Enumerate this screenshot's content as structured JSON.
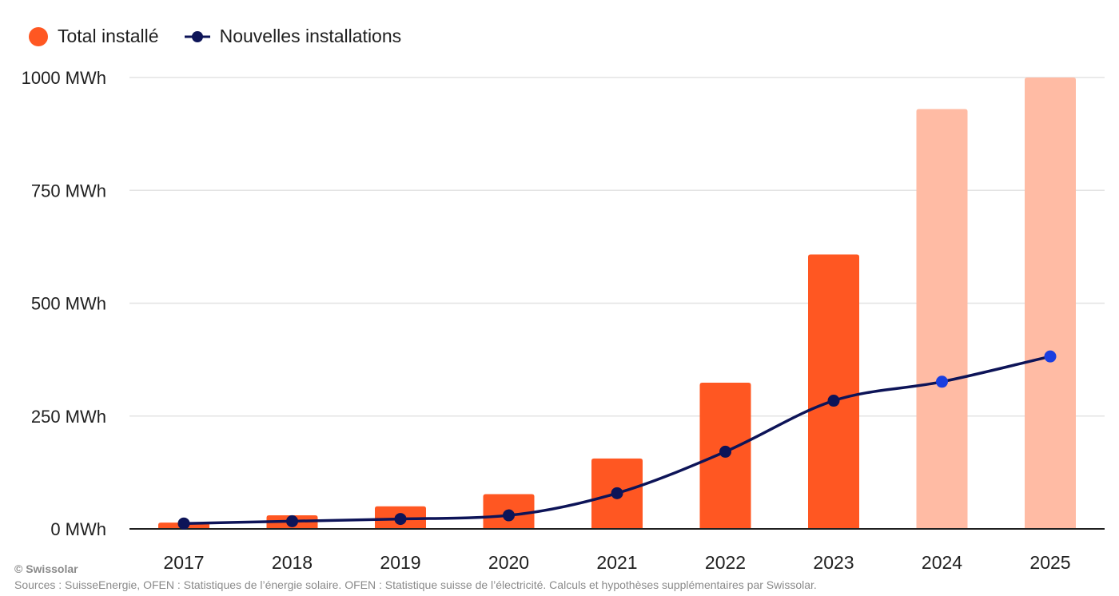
{
  "legend": {
    "items": [
      {
        "label": "Total installé",
        "color": "#ff5722",
        "marker": "dot"
      },
      {
        "label": "Nouvelles installations",
        "color": "#0d1458",
        "marker": "line-dot"
      }
    ]
  },
  "footer": {
    "credit": "© Swissolar",
    "sources": "Sources : SuisseEnergie, OFEN : Statistiques de l’énergie solaire. OFEN : Statistique suisse de l’électricité. Calculs et hypothèses supplémentaires par Swissolar."
  },
  "chart_data": {
    "type": "bar",
    "categories": [
      "2017",
      "2018",
      "2019",
      "2020",
      "2021",
      "2022",
      "2023",
      "2024",
      "2025"
    ],
    "y_tick_labels": [
      "0 MWh",
      "250 MWh",
      "500 MWh",
      "750 MWh",
      "1000 MWh"
    ],
    "y_ticks": [
      0,
      250,
      500,
      750,
      1000
    ],
    "ylim": [
      0,
      1000
    ],
    "grid": true,
    "legend_position": "top-left",
    "series": [
      {
        "name": "Total installé",
        "type": "bar",
        "color": "#ff5722",
        "projected_color": "#ffbba4",
        "values": [
          14,
          30,
          50,
          77,
          156,
          324,
          608,
          930,
          1000
        ],
        "projected": [
          false,
          false,
          false,
          false,
          false,
          false,
          false,
          true,
          true
        ]
      },
      {
        "name": "Nouvelles installations",
        "type": "line",
        "color": "#0d1458",
        "projected_marker_color": "#1a3ee0",
        "values": [
          12,
          17,
          22,
          30,
          79,
          171,
          284,
          326,
          382
        ],
        "projected": [
          false,
          false,
          false,
          false,
          false,
          false,
          false,
          true,
          true
        ]
      }
    ]
  }
}
